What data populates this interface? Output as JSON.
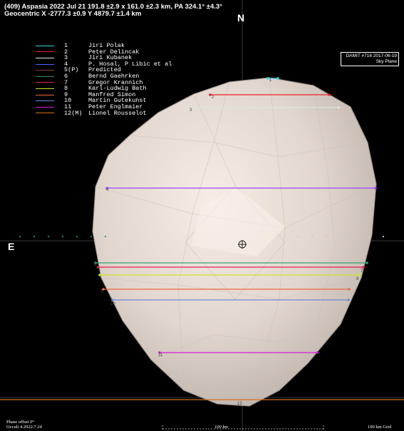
{
  "header": {
    "line1": "(409) Aspasia  2022 Jul 21   191.8 ±2.9 x 161.0 ±2.3 km, PA 324.1° ±4.3°",
    "line2": "Geocentric X -2777.3 ±0.9  Y 4879.7 ±1.4 km"
  },
  "compass": {
    "north": "N",
    "east": "E"
  },
  "legend": [
    {
      "num": "1",
      "name": "Jiri Polak",
      "color": "#2fd8e8"
    },
    {
      "num": "2",
      "name": "Peter Delincak",
      "color": "#e8202c"
    },
    {
      "num": "3",
      "name": "Jiri Kubanek",
      "color": "#d8e8e0"
    },
    {
      "num": "4",
      "name": "P. Hosal, P Libic et al",
      "color": "#5060ff"
    },
    {
      "num": "5(P)",
      "name": "Predicted",
      "color": "#8a3a3a"
    },
    {
      "num": "6",
      "name": "Bernd Gaehrken",
      "color": "#2a8a6a"
    },
    {
      "num": "7",
      "name": "Gregor Krannich",
      "color": "#e82050"
    },
    {
      "num": "8",
      "name": "Karl-Ludwig Bath",
      "color": "#c8e820"
    },
    {
      "num": "9",
      "name": "Manfred Simon",
      "color": "#e86840"
    },
    {
      "num": "10",
      "name": "Martin Gutekunst",
      "color": "#6a8ad8"
    },
    {
      "num": "11",
      "name": "Peter Englmaier",
      "color": "#d020d8"
    },
    {
      "num": "12(M)",
      "name": "Lionel Rousselot",
      "color": "#d87020"
    }
  ],
  "damit": {
    "line1": "DAMIT #716 2017-06-19",
    "line2": "Sky Plane"
  },
  "chords": [
    {
      "id": "1",
      "color": "#2fd8e8"
    },
    {
      "id": "2",
      "color": "#e8202c"
    },
    {
      "id": "3",
      "color": "#d8e8e0"
    },
    {
      "id": "4",
      "color": "#a040ff"
    },
    {
      "id": "6",
      "color": "#3aa070"
    },
    {
      "id": "7",
      "color": "#e82050"
    },
    {
      "id": "8",
      "color": "#c8e820"
    },
    {
      "id": "9",
      "color": "#e86840"
    },
    {
      "id": "10",
      "color": "#6a8ad8"
    },
    {
      "id": "11",
      "color": "#d020d8"
    },
    {
      "id": "12",
      "color": "#d87020"
    }
  ],
  "footer": {
    "line1": "Phase offset 0°",
    "line2": "Occult 4.2022.7.24",
    "scale": "100 km",
    "grid": "100 km Grid"
  },
  "colors": {
    "background": "#000000",
    "shape": "#e6ddd6",
    "grid": "#3a3a3a"
  }
}
